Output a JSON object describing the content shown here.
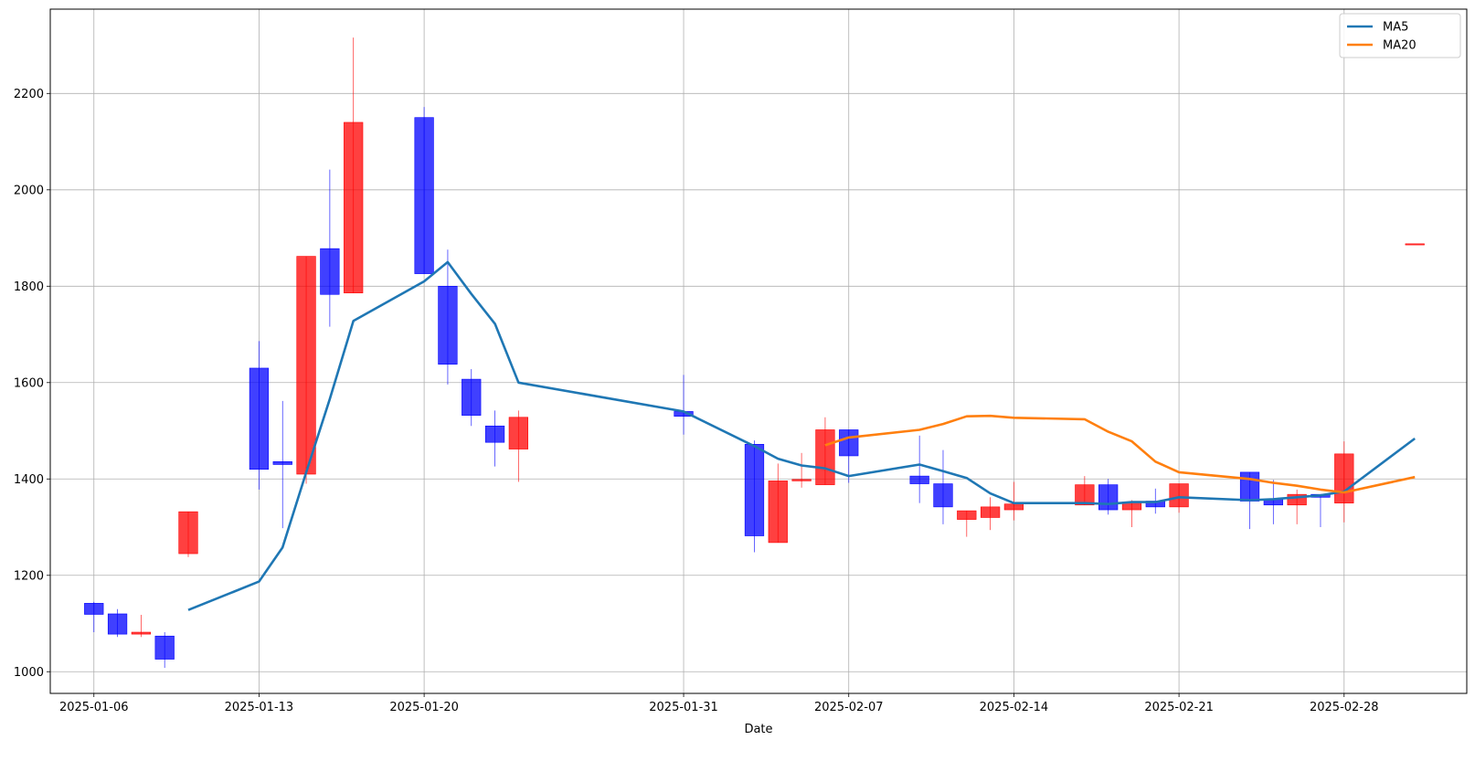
{
  "chart_data": {
    "type": "candlestick",
    "xlabel": "Date",
    "ylabel": "",
    "ylim": [
      955,
      2375
    ],
    "y_ticks": [
      1000,
      1200,
      1400,
      1600,
      1800,
      2000,
      2200
    ],
    "x_ticks": [
      "2025-01-06",
      "2025-01-13",
      "2025-01-20",
      "2025-01-31",
      "2025-02-07",
      "2025-02-14",
      "2025-02-21",
      "2025-02-28"
    ],
    "x_tick_labels": [
      "2025-01-06",
      "2025-01-13",
      "2025-01-20",
      "2025-01-31",
      "2025-02-07",
      "2025-02-14",
      "2025-02-21",
      "2025-02-28"
    ],
    "grid": true,
    "legend_position": "top-right",
    "up_color": "#ff0000",
    "down_color": "#0000ff",
    "candles": [
      {
        "date": "2025-01-06",
        "open": 1142,
        "high": 1145,
        "low": 1082,
        "close": 1119
      },
      {
        "date": "2025-01-07",
        "open": 1120,
        "high": 1130,
        "low": 1072,
        "close": 1078
      },
      {
        "date": "2025-01-08",
        "open": 1078,
        "high": 1118,
        "low": 1072,
        "close": 1082
      },
      {
        "date": "2025-01-09",
        "open": 1074,
        "high": 1082,
        "low": 1008,
        "close": 1026
      },
      {
        "date": "2025-01-10",
        "open": 1245,
        "high": 1332,
        "low": 1238,
        "close": 1332
      },
      {
        "date": "2025-01-13",
        "open": 1630,
        "high": 1686,
        "low": 1378,
        "close": 1420
      },
      {
        "date": "2025-01-14",
        "open": 1436,
        "high": 1562,
        "low": 1298,
        "close": 1430
      },
      {
        "date": "2025-01-15",
        "open": 1410,
        "high": 1862,
        "low": 1390,
        "close": 1862
      },
      {
        "date": "2025-01-16",
        "open": 1878,
        "high": 2042,
        "low": 1716,
        "close": 1783
      },
      {
        "date": "2025-01-17",
        "open": 1786,
        "high": 2316,
        "low": 1786,
        "close": 2140
      },
      {
        "date": "2025-01-20",
        "open": 2150,
        "high": 2172,
        "low": 1826,
        "close": 1826
      },
      {
        "date": "2025-01-21",
        "open": 1800,
        "high": 1876,
        "low": 1596,
        "close": 1638
      },
      {
        "date": "2025-01-22",
        "open": 1607,
        "high": 1628,
        "low": 1510,
        "close": 1532
      },
      {
        "date": "2025-01-23",
        "open": 1510,
        "high": 1542,
        "low": 1426,
        "close": 1476
      },
      {
        "date": "2025-01-24",
        "open": 1462,
        "high": 1542,
        "low": 1394,
        "close": 1528
      },
      {
        "date": "2025-01-31",
        "open": 1540,
        "high": 1616,
        "low": 1492,
        "close": 1530
      },
      {
        "date": "2025-02-03",
        "open": 1472,
        "high": 1480,
        "low": 1248,
        "close": 1282
      },
      {
        "date": "2025-02-04",
        "open": 1268,
        "high": 1432,
        "low": 1268,
        "close": 1396
      },
      {
        "date": "2025-02-05",
        "open": 1396,
        "high": 1454,
        "low": 1382,
        "close": 1399
      },
      {
        "date": "2025-02-06",
        "open": 1388,
        "high": 1528,
        "low": 1388,
        "close": 1502
      },
      {
        "date": "2025-02-07",
        "open": 1502,
        "high": 1502,
        "low": 1392,
        "close": 1448
      },
      {
        "date": "2025-02-10",
        "open": 1406,
        "high": 1490,
        "low": 1350,
        "close": 1390
      },
      {
        "date": "2025-02-11",
        "open": 1390,
        "high": 1460,
        "low": 1306,
        "close": 1342
      },
      {
        "date": "2025-02-12",
        "open": 1316,
        "high": 1334,
        "low": 1280,
        "close": 1334
      },
      {
        "date": "2025-02-13",
        "open": 1320,
        "high": 1362,
        "low": 1294,
        "close": 1342
      },
      {
        "date": "2025-02-14",
        "open": 1336,
        "high": 1394,
        "low": 1314,
        "close": 1348
      },
      {
        "date": "2025-02-17",
        "open": 1346,
        "high": 1406,
        "low": 1346,
        "close": 1388
      },
      {
        "date": "2025-02-18",
        "open": 1388,
        "high": 1400,
        "low": 1326,
        "close": 1336
      },
      {
        "date": "2025-02-19",
        "open": 1336,
        "high": 1356,
        "low": 1300,
        "close": 1352
      },
      {
        "date": "2025-02-20",
        "open": 1354,
        "high": 1380,
        "low": 1328,
        "close": 1342
      },
      {
        "date": "2025-02-21",
        "open": 1342,
        "high": 1390,
        "low": 1330,
        "close": 1390
      },
      {
        "date": "2025-02-24",
        "open": 1414,
        "high": 1414,
        "low": 1296,
        "close": 1354
      },
      {
        "date": "2025-02-25",
        "open": 1358,
        "high": 1398,
        "low": 1306,
        "close": 1346
      },
      {
        "date": "2025-02-26",
        "open": 1346,
        "high": 1378,
        "low": 1306,
        "close": 1368
      },
      {
        "date": "2025-02-27",
        "open": 1368,
        "high": 1368,
        "low": 1300,
        "close": 1362
      },
      {
        "date": "2025-02-28",
        "open": 1350,
        "high": 1478,
        "low": 1310,
        "close": 1452
      },
      {
        "date": "2025-03-03",
        "open": 1888,
        "high": 1888,
        "low": 1888,
        "close": 1888
      }
    ],
    "series": [
      {
        "name": "MA5",
        "color": "#1f77b4",
        "points": [
          {
            "date": "2025-01-10",
            "value": 1128
          },
          {
            "date": "2025-01-13",
            "value": 1187
          },
          {
            "date": "2025-01-14",
            "value": 1258
          },
          {
            "date": "2025-01-15",
            "value": 1414
          },
          {
            "date": "2025-01-16",
            "value": 1566
          },
          {
            "date": "2025-01-17",
            "value": 1728
          },
          {
            "date": "2025-01-20",
            "value": 1810
          },
          {
            "date": "2025-01-21",
            "value": 1850
          },
          {
            "date": "2025-01-22",
            "value": 1784
          },
          {
            "date": "2025-01-23",
            "value": 1722
          },
          {
            "date": "2025-01-24",
            "value": 1600
          },
          {
            "date": "2025-01-31",
            "value": 1540
          },
          {
            "date": "2025-02-03",
            "value": 1468
          },
          {
            "date": "2025-02-04",
            "value": 1442
          },
          {
            "date": "2025-02-05",
            "value": 1428
          },
          {
            "date": "2025-02-06",
            "value": 1422
          },
          {
            "date": "2025-02-07",
            "value": 1406
          },
          {
            "date": "2025-02-10",
            "value": 1430
          },
          {
            "date": "2025-02-11",
            "value": 1416
          },
          {
            "date": "2025-02-12",
            "value": 1402
          },
          {
            "date": "2025-02-13",
            "value": 1370
          },
          {
            "date": "2025-02-14",
            "value": 1350
          },
          {
            "date": "2025-02-17",
            "value": 1350
          },
          {
            "date": "2025-02-18",
            "value": 1348
          },
          {
            "date": "2025-02-19",
            "value": 1352
          },
          {
            "date": "2025-02-20",
            "value": 1352
          },
          {
            "date": "2025-02-21",
            "value": 1362
          },
          {
            "date": "2025-02-24",
            "value": 1356
          },
          {
            "date": "2025-02-25",
            "value": 1358
          },
          {
            "date": "2025-02-26",
            "value": 1362
          },
          {
            "date": "2025-02-27",
            "value": 1366
          },
          {
            "date": "2025-02-28",
            "value": 1374
          },
          {
            "date": "2025-03-03",
            "value": 1484
          }
        ]
      },
      {
        "name": "MA20",
        "color": "#ff7f0e",
        "points": [
          {
            "date": "2025-02-06",
            "value": 1470
          },
          {
            "date": "2025-02-07",
            "value": 1486
          },
          {
            "date": "2025-02-10",
            "value": 1502
          },
          {
            "date": "2025-02-11",
            "value": 1514
          },
          {
            "date": "2025-02-12",
            "value": 1530
          },
          {
            "date": "2025-02-13",
            "value": 1531
          },
          {
            "date": "2025-02-14",
            "value": 1527
          },
          {
            "date": "2025-02-17",
            "value": 1524
          },
          {
            "date": "2025-02-18",
            "value": 1498
          },
          {
            "date": "2025-02-19",
            "value": 1478
          },
          {
            "date": "2025-02-20",
            "value": 1436
          },
          {
            "date": "2025-02-21",
            "value": 1414
          },
          {
            "date": "2025-02-24",
            "value": 1400
          },
          {
            "date": "2025-02-25",
            "value": 1392
          },
          {
            "date": "2025-02-26",
            "value": 1386
          },
          {
            "date": "2025-02-27",
            "value": 1378
          },
          {
            "date": "2025-02-28",
            "value": 1372
          },
          {
            "date": "2025-03-03",
            "value": 1404
          }
        ]
      }
    ]
  }
}
